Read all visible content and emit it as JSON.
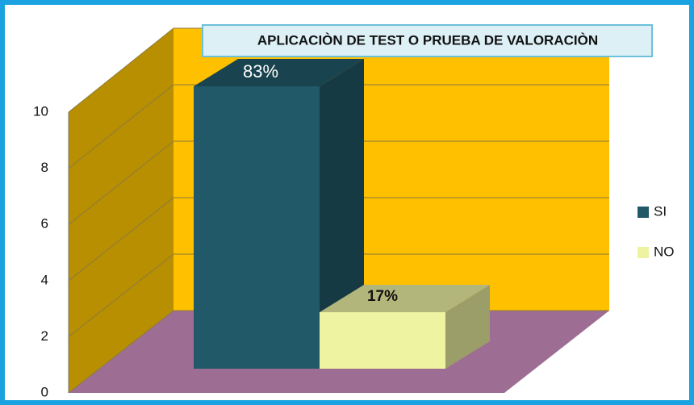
{
  "chart_data": {
    "type": "bar",
    "title": "APLICACIÒN DE TEST O PRUEBA DE VALORACIÒN",
    "series": [
      {
        "name": "SI",
        "color": "#215968",
        "values": [
          10
        ],
        "value_labels": [
          "83%"
        ]
      },
      {
        "name": "NO",
        "color": "#eef3a2",
        "values": [
          2
        ],
        "value_labels": [
          "17%"
        ]
      }
    ],
    "ylim": [
      0,
      10
    ],
    "yticks": [
      0,
      2,
      4,
      6,
      8,
      10
    ],
    "grid": true,
    "legend": "right"
  }
}
